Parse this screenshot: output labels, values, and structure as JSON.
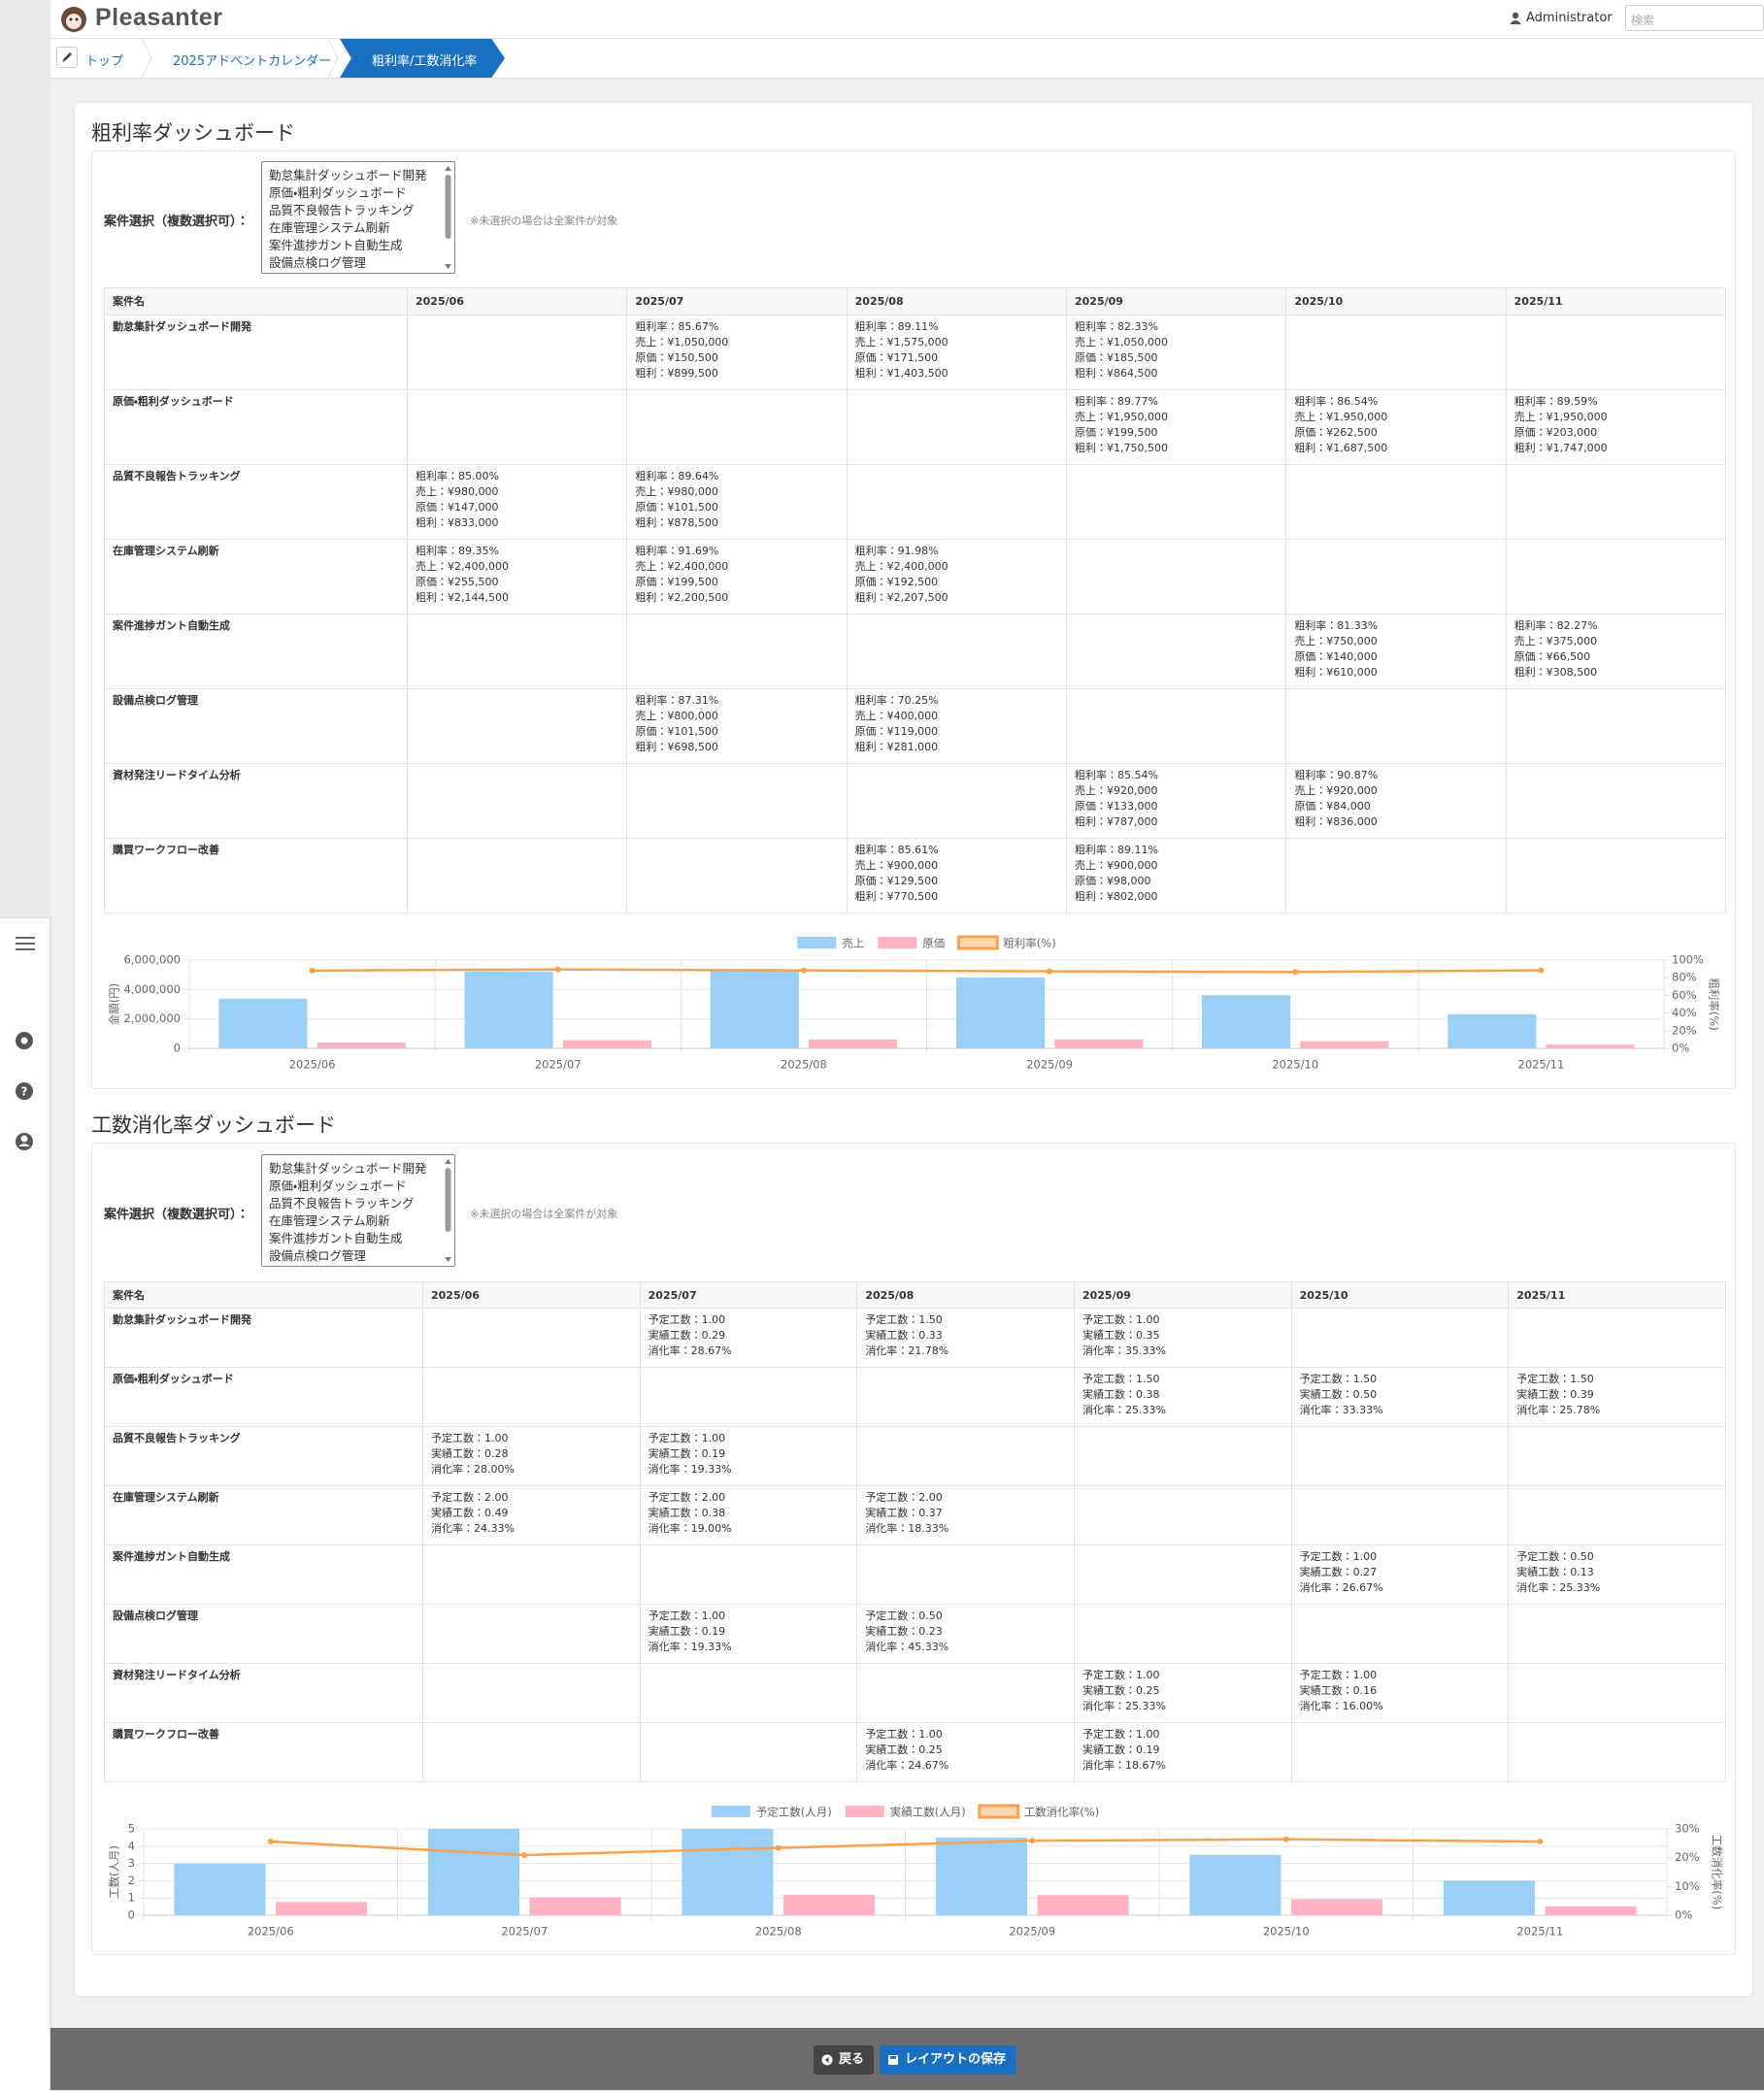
{
  "header": {
    "logo": "Pleasanter",
    "user": "Administrator",
    "search_placeholder": "検索"
  },
  "breadcrumb": [
    "トップ",
    "2025アドベントカレンダー",
    "粗利率/工数消化率"
  ],
  "dashboards": [
    {
      "title": "粗利率ダッシュボード",
      "select_label": "案件選択（複数選択可）：",
      "options": [
        "勤怠集計ダッシュボード開発",
        "原価・粗利ダッシュボード",
        "品質不良報告トラッキング",
        "在庫管理システム刷新",
        "案件進捗ガント自動生成",
        "設備点検ログ管理"
      ],
      "note": "※未選択の場合は全案件が対象",
      "table": {
        "headers": [
          "案件名",
          "2025/06",
          "2025/07",
          "2025/08",
          "2025/09",
          "2025/10",
          "2025/11"
        ],
        "rows": [
          {
            "name": "勤怠集計ダッシュボード開発",
            "cells": [
              null,
              [
                "粗利率：85.67%",
                "売上：¥1,050,000",
                "原価：¥150,500",
                "粗利：¥899,500"
              ],
              [
                "粗利率：89.11%",
                "売上：¥1,575,000",
                "原価：¥171,500",
                "粗利：¥1,403,500"
              ],
              [
                "粗利率：82.33%",
                "売上：¥1,050,000",
                "原価：¥185,500",
                "粗利：¥864,500"
              ],
              null,
              null
            ]
          },
          {
            "name": "原価・粗利ダッシュボード",
            "cells": [
              null,
              null,
              null,
              [
                "粗利率：89.77%",
                "売上：¥1,950,000",
                "原価：¥199,500",
                "粗利：¥1,750,500"
              ],
              [
                "粗利率：86.54%",
                "売上：¥1,950,000",
                "原価：¥262,500",
                "粗利：¥1,687,500"
              ],
              [
                "粗利率：89.59%",
                "売上：¥1,950,000",
                "原価：¥203,000",
                "粗利：¥1,747,000"
              ]
            ]
          },
          {
            "name": "品質不良報告トラッキング",
            "cells": [
              [
                "粗利率：85.00%",
                "売上：¥980,000",
                "原価：¥147,000",
                "粗利：¥833,000"
              ],
              [
                "粗利率：89.64%",
                "売上：¥980,000",
                "原価：¥101,500",
                "粗利：¥878,500"
              ],
              null,
              null,
              null,
              null
            ]
          },
          {
            "name": "在庫管理システム刷新",
            "cells": [
              [
                "粗利率：89.35%",
                "売上：¥2,400,000",
                "原価：¥255,500",
                "粗利：¥2,144,500"
              ],
              [
                "粗利率：91.69%",
                "売上：¥2,400,000",
                "原価：¥199,500",
                "粗利：¥2,200,500"
              ],
              [
                "粗利率：91.98%",
                "売上：¥2,400,000",
                "原価：¥192,500",
                "粗利：¥2,207,500"
              ],
              null,
              null,
              null
            ]
          },
          {
            "name": "案件進捗ガント自動生成",
            "cells": [
              null,
              null,
              null,
              null,
              [
                "粗利率：81.33%",
                "売上：¥750,000",
                "原価：¥140,000",
                "粗利：¥610,000"
              ],
              [
                "粗利率：82.27%",
                "売上：¥375,000",
                "原価：¥66,500",
                "粗利：¥308,500"
              ]
            ]
          },
          {
            "name": "設備点検ログ管理",
            "cells": [
              null,
              [
                "粗利率：87.31%",
                "売上：¥800,000",
                "原価：¥101,500",
                "粗利：¥698,500"
              ],
              [
                "粗利率：70.25%",
                "売上：¥400,000",
                "原価：¥119,000",
                "粗利：¥281,000"
              ],
              null,
              null,
              null
            ]
          },
          {
            "name": "資材発注リードタイム分析",
            "cells": [
              null,
              null,
              null,
              [
                "粗利率：85.54%",
                "売上：¥920,000",
                "原価：¥133,000",
                "粗利：¥787,000"
              ],
              [
                "粗利率：90.87%",
                "売上：¥920,000",
                "原価：¥84,000",
                "粗利：¥836,000"
              ],
              null
            ]
          },
          {
            "name": "購買ワークフロー改善",
            "cells": [
              null,
              null,
              [
                "粗利率：85.61%",
                "売上：¥900,000",
                "原価：¥129,500",
                "粗利：¥770,500"
              ],
              [
                "粗利率：89.11%",
                "売上：¥900,000",
                "原価：¥98,000",
                "粗利：¥802,000"
              ],
              null,
              null
            ]
          }
        ]
      }
    },
    {
      "title": "工数消化率ダッシュボード",
      "select_label": "案件選択（複数選択可）：",
      "options": [
        "勤怠集計ダッシュボード開発",
        "原価・粗利ダッシュボード",
        "品質不良報告トラッキング",
        "在庫管理システム刷新",
        "案件進捗ガント自動生成",
        "設備点検ログ管理"
      ],
      "note": "※未選択の場合は全案件が対象",
      "table": {
        "headers": [
          "案件名",
          "2025/06",
          "2025/07",
          "2025/08",
          "2025/09",
          "2025/10",
          "2025/11"
        ],
        "rows": [
          {
            "name": "勤怠集計ダッシュボード開発",
            "cells": [
              null,
              [
                "予定工数：1.00",
                "実績工数：0.29",
                "消化率：28.67%"
              ],
              [
                "予定工数：1.50",
                "実績工数：0.33",
                "消化率：21.78%"
              ],
              [
                "予定工数：1.00",
                "実績工数：0.35",
                "消化率：35.33%"
              ],
              null,
              null
            ]
          },
          {
            "name": "原価・粗利ダッシュボード",
            "cells": [
              null,
              null,
              null,
              [
                "予定工数：1.50",
                "実績工数：0.38",
                "消化率：25.33%"
              ],
              [
                "予定工数：1.50",
                "実績工数：0.50",
                "消化率：33.33%"
              ],
              [
                "予定工数：1.50",
                "実績工数：0.39",
                "消化率：25.78%"
              ]
            ]
          },
          {
            "name": "品質不良報告トラッキング",
            "cells": [
              [
                "予定工数：1.00",
                "実績工数：0.28",
                "消化率：28.00%"
              ],
              [
                "予定工数：1.00",
                "実績工数：0.19",
                "消化率：19.33%"
              ],
              null,
              null,
              null,
              null
            ]
          },
          {
            "name": "在庫管理システム刷新",
            "cells": [
              [
                "予定工数：2.00",
                "実績工数：0.49",
                "消化率：24.33%"
              ],
              [
                "予定工数：2.00",
                "実績工数：0.38",
                "消化率：19.00%"
              ],
              [
                "予定工数：2.00",
                "実績工数：0.37",
                "消化率：18.33%"
              ],
              null,
              null,
              null
            ]
          },
          {
            "name": "案件進捗ガント自動生成",
            "cells": [
              null,
              null,
              null,
              null,
              [
                "予定工数：1.00",
                "実績工数：0.27",
                "消化率：26.67%"
              ],
              [
                "予定工数：0.50",
                "実績工数：0.13",
                "消化率：25.33%"
              ]
            ]
          },
          {
            "name": "設備点検ログ管理",
            "cells": [
              null,
              [
                "予定工数：1.00",
                "実績工数：0.19",
                "消化率：19.33%"
              ],
              [
                "予定工数：0.50",
                "実績工数：0.23",
                "消化率：45.33%"
              ],
              null,
              null,
              null
            ]
          },
          {
            "name": "資材発注リードタイム分析",
            "cells": [
              null,
              null,
              null,
              [
                "予定工数：1.00",
                "実績工数：0.25",
                "消化率：25.33%"
              ],
              [
                "予定工数：1.00",
                "実績工数：0.16",
                "消化率：16.00%"
              ],
              null
            ]
          },
          {
            "name": "購買ワークフロー改善",
            "cells": [
              null,
              null,
              [
                "予定工数：1.00",
                "実績工数：0.25",
                "消化率：24.67%"
              ],
              [
                "予定工数：1.00",
                "実績工数：0.19",
                "消化率：18.67%"
              ],
              null,
              null
            ]
          }
        ]
      }
    }
  ],
  "chart_data": [
    {
      "type": "bar",
      "y_label": "金額(円)",
      "y2_label": "粗利率(%)",
      "categories": [
        "2025/06",
        "2025/07",
        "2025/08",
        "2025/09",
        "2025/10",
        "2025/11"
      ],
      "series": [
        {
          "name": "売上",
          "type": "bar",
          "color": "#9ccff5",
          "values": [
            3380000,
            5230000,
            5275000,
            4820000,
            3620000,
            2325000
          ]
        },
        {
          "name": "原価",
          "type": "bar",
          "color": "#ffb3c3",
          "values": [
            402500,
            553000,
            612500,
            616000,
            486500,
            269500
          ]
        },
        {
          "name": "粗利率(%)",
          "type": "line",
          "axis": "y2",
          "color": "#f7a24f",
          "values": [
            88.09,
            89.43,
            88.39,
            87.22,
            86.56,
            88.41
          ]
        }
      ],
      "ylim": [
        0,
        6000000
      ],
      "yticks": [
        0,
        {
          "value": 2000000,
          "label": "2,000,000"
        },
        {
          "value": 4000000,
          "label": "4,000,000"
        },
        {
          "value": 6000000,
          "label": "6,000,000"
        }
      ],
      "y2lim": [
        0,
        100
      ],
      "y2ticks": [
        {
          "value": 0,
          "label": "0%"
        },
        {
          "value": 20,
          "label": "20%"
        },
        {
          "value": 40,
          "label": "40%"
        },
        {
          "value": 60,
          "label": "60%"
        },
        {
          "value": 80,
          "label": "80%"
        },
        {
          "value": 100,
          "label": "100%"
        }
      ],
      "grid": true,
      "legend": "top"
    },
    {
      "type": "bar",
      "y_label": "工数(人月)",
      "y2_label": "工数消化率(%)",
      "categories": [
        "2025/06",
        "2025/07",
        "2025/08",
        "2025/09",
        "2025/10",
        "2025/11"
      ],
      "series": [
        {
          "name": "予定工数(人月)",
          "type": "bar",
          "color": "#9ccff5",
          "values": [
            3,
            5,
            5,
            4.5,
            3.5,
            2
          ]
        },
        {
          "name": "実績工数(人月)",
          "type": "bar",
          "color": "#ffb3c3",
          "values": [
            0.77,
            1.05,
            1.18,
            1.17,
            0.93,
            0.52
          ]
        },
        {
          "name": "工数消化率(%)",
          "type": "line",
          "axis": "y2",
          "color": "#f7a24f",
          "values": [
            25.6,
            20.9,
            23.4,
            25.9,
            26.4,
            25.6
          ]
        }
      ],
      "ylim": [
        0,
        5
      ],
      "yticks": [
        0,
        1,
        2,
        3,
        4,
        5
      ],
      "y2lim": [
        0,
        30
      ],
      "y2ticks": [
        {
          "value": 0,
          "label": "0%"
        },
        {
          "value": 10,
          "label": "10%"
        },
        {
          "value": 20,
          "label": "20%"
        },
        {
          "value": 30,
          "label": "30%"
        }
      ],
      "grid": true,
      "legend": "top"
    }
  ],
  "footer": {
    "back": "戻る",
    "save": "レイアウトの保存"
  }
}
